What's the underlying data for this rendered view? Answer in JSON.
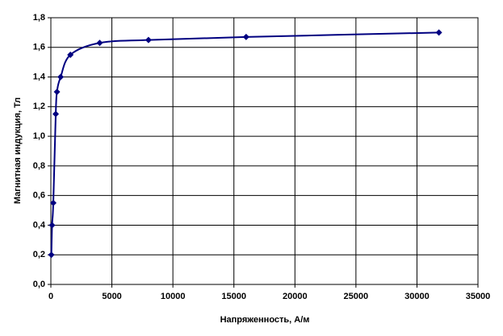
{
  "chart_data": {
    "type": "scatter",
    "x_label": "Напряженность, А/м",
    "y_label": "Магнитная индукция, Тл",
    "x": [
      40,
      100,
      200,
      400,
      500,
      800,
      1600,
      4000,
      8000,
      16000,
      31800
    ],
    "values": [
      0.2,
      0.4,
      0.55,
      1.15,
      1.3,
      1.4,
      1.55,
      1.63,
      1.65,
      1.67,
      1.7
    ],
    "color": "#000080",
    "smooth": true,
    "grid": true,
    "xlim": [
      0,
      35000
    ],
    "xticks": [
      0,
      5000,
      10000,
      15000,
      20000,
      25000,
      30000,
      35000
    ],
    "ylim": [
      0,
      1.8
    ],
    "yticks": [
      {
        "value": 0,
        "label": "0,0"
      },
      {
        "value": 0.2,
        "label": "0,2"
      },
      {
        "value": 0.4,
        "label": "0,4"
      },
      {
        "value": 0.6,
        "label": "0,6"
      },
      {
        "value": 0.8,
        "label": "0,8"
      },
      {
        "value": 1.0,
        "label": "1,0"
      },
      {
        "value": 1.2,
        "label": "1,2"
      },
      {
        "value": 1.4,
        "label": "1,4"
      },
      {
        "value": 1.6,
        "label": "1,6"
      },
      {
        "value": 1.8,
        "label": "1,8"
      }
    ]
  }
}
